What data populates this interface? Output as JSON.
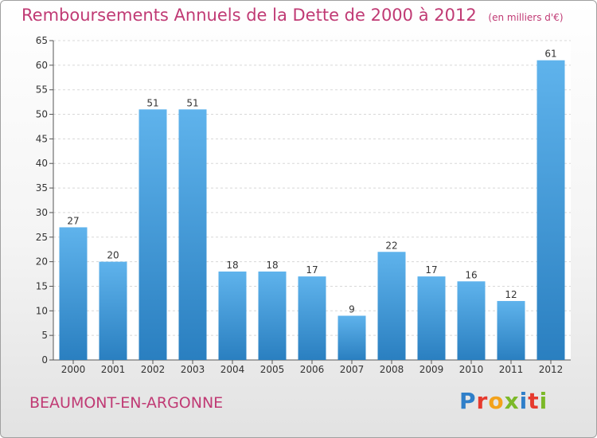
{
  "title": "Remboursements Annuels de la Dette de 2000 à 2012",
  "unit": "(en milliers d'€)",
  "commune": "BEAUMONT-EN-ARGONNE",
  "logo": {
    "letters": [
      "P",
      "r",
      "o",
      "x",
      "i",
      "t",
      "i"
    ],
    "colors": [
      "#2f7fc9",
      "#e63a2e",
      "#f3a21b",
      "#7cb928",
      "#2f7fc9",
      "#e63a2e",
      "#7cb928"
    ]
  },
  "colors": {
    "title": "#c03a74",
    "bar_light": "#5fb3ec",
    "bar_dark": "#2a7fc0"
  },
  "chart_data": {
    "type": "bar",
    "title": "Remboursements Annuels de la Dette de 2000 à 2012",
    "categories": [
      "2000",
      "2001",
      "2002",
      "2003",
      "2004",
      "2005",
      "2006",
      "2007",
      "2008",
      "2009",
      "2010",
      "2011",
      "2012"
    ],
    "values": [
      27,
      20,
      51,
      51,
      18,
      18,
      17,
      9,
      22,
      17,
      16,
      12,
      61
    ],
    "ylim": [
      0,
      65
    ],
    "yticks": [
      0,
      5,
      10,
      15,
      20,
      25,
      30,
      35,
      40,
      45,
      50,
      55,
      60,
      65
    ],
    "grid": true,
    "legend": "none"
  }
}
